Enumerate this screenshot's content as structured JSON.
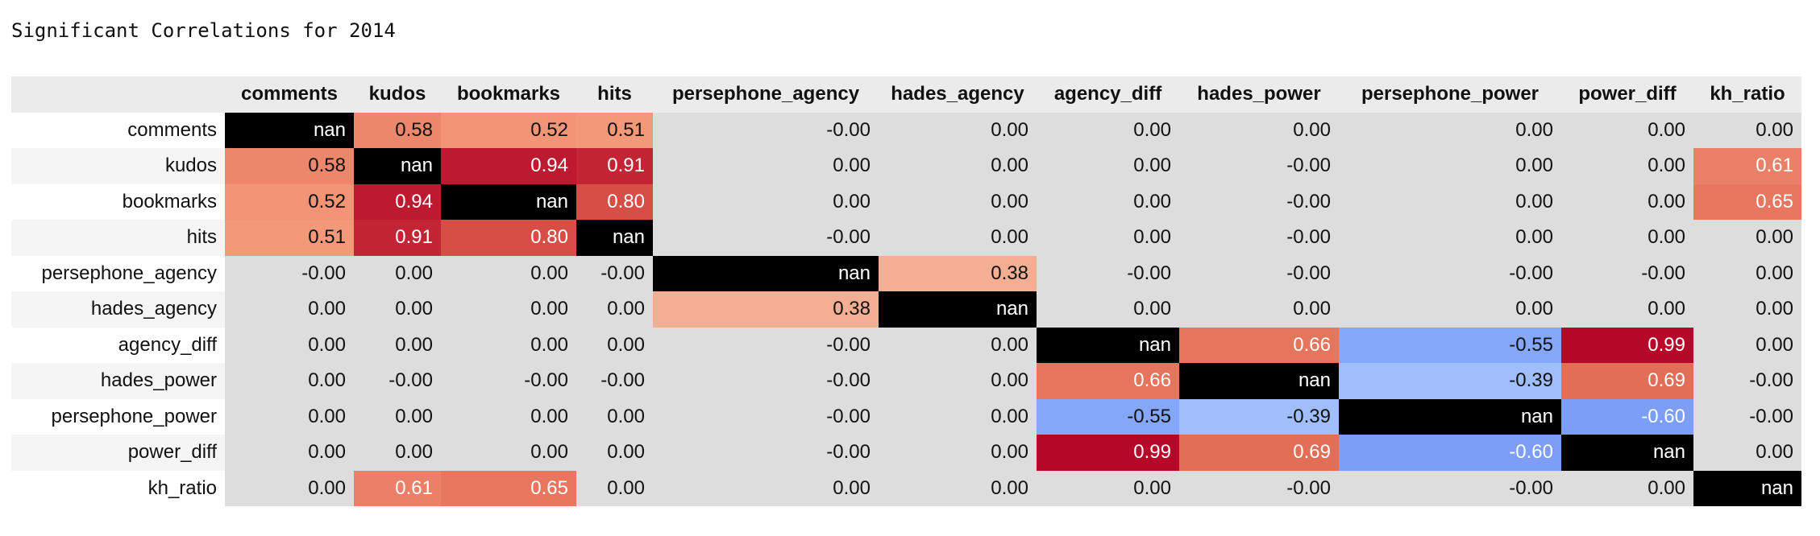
{
  "title": "Significant Correlations for 2014",
  "chart_data": {
    "type": "heatmap",
    "title": "Significant Correlations for 2014",
    "colormap": "coolwarm",
    "vmin": -1,
    "vmax": 1,
    "nan_color": "#000000",
    "columns": [
      "comments",
      "kudos",
      "bookmarks",
      "hits",
      "persephone_agency",
      "hades_agency",
      "agency_diff",
      "hades_power",
      "persephone_power",
      "power_diff",
      "kh_ratio"
    ],
    "rows": [
      {
        "label": "comments",
        "cells": [
          "nan",
          "0.58",
          "0.52",
          "0.51",
          "-0.00",
          "0.00",
          "0.00",
          "0.00",
          "0.00",
          "0.00",
          "0.00"
        ]
      },
      {
        "label": "kudos",
        "cells": [
          "0.58",
          "nan",
          "0.94",
          "0.91",
          "0.00",
          "0.00",
          "0.00",
          "-0.00",
          "0.00",
          "0.00",
          "0.61"
        ]
      },
      {
        "label": "bookmarks",
        "cells": [
          "0.52",
          "0.94",
          "nan",
          "0.80",
          "0.00",
          "0.00",
          "0.00",
          "-0.00",
          "0.00",
          "0.00",
          "0.65"
        ]
      },
      {
        "label": "hits",
        "cells": [
          "0.51",
          "0.91",
          "0.80",
          "nan",
          "-0.00",
          "0.00",
          "0.00",
          "-0.00",
          "0.00",
          "0.00",
          "0.00"
        ]
      },
      {
        "label": "persephone_agency",
        "cells": [
          "-0.00",
          "0.00",
          "0.00",
          "-0.00",
          "nan",
          "0.38",
          "-0.00",
          "-0.00",
          "-0.00",
          "-0.00",
          "0.00"
        ]
      },
      {
        "label": "hades_agency",
        "cells": [
          "0.00",
          "0.00",
          "0.00",
          "0.00",
          "0.38",
          "nan",
          "0.00",
          "0.00",
          "0.00",
          "0.00",
          "0.00"
        ]
      },
      {
        "label": "agency_diff",
        "cells": [
          "0.00",
          "0.00",
          "0.00",
          "0.00",
          "-0.00",
          "0.00",
          "nan",
          "0.66",
          "-0.55",
          "0.99",
          "0.00"
        ]
      },
      {
        "label": "hades_power",
        "cells": [
          "0.00",
          "-0.00",
          "-0.00",
          "-0.00",
          "-0.00",
          "0.00",
          "0.66",
          "nan",
          "-0.39",
          "0.69",
          "-0.00"
        ]
      },
      {
        "label": "persephone_power",
        "cells": [
          "0.00",
          "0.00",
          "0.00",
          "0.00",
          "-0.00",
          "0.00",
          "-0.55",
          "-0.39",
          "nan",
          "-0.60",
          "-0.00"
        ]
      },
      {
        "label": "power_diff",
        "cells": [
          "0.00",
          "0.00",
          "0.00",
          "0.00",
          "-0.00",
          "0.00",
          "0.99",
          "0.69",
          "-0.60",
          "nan",
          "0.00"
        ]
      },
      {
        "label": "kh_ratio",
        "cells": [
          "0.00",
          "0.61",
          "0.65",
          "0.00",
          "0.00",
          "0.00",
          "0.00",
          "-0.00",
          "-0.00",
          "0.00",
          "nan"
        ]
      }
    ]
  }
}
